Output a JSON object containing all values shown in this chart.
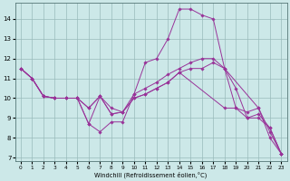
{
  "xlabel": "Windchill (Refroidissement éolien,°C)",
  "bg_color": "#cce8e8",
  "line_color": "#993399",
  "grid_color": "#99bbbb",
  "xlim": [
    -0.5,
    23.5
  ],
  "ylim": [
    6.8,
    14.8
  ],
  "yticks": [
    7,
    8,
    9,
    10,
    11,
    12,
    13,
    14
  ],
  "xticks": [
    0,
    1,
    2,
    3,
    4,
    5,
    6,
    7,
    8,
    9,
    10,
    11,
    12,
    13,
    14,
    15,
    16,
    17,
    18,
    19,
    20,
    21,
    22,
    23
  ],
  "series": [
    {
      "x": [
        0,
        1,
        2,
        3,
        4,
        5,
        6,
        7,
        8,
        9,
        10,
        11,
        12,
        13,
        14,
        15,
        16,
        17,
        18,
        21,
        22,
        23
      ],
      "y": [
        11.5,
        11.0,
        10.1,
        10.0,
        10.0,
        10.0,
        8.7,
        8.3,
        8.8,
        8.8,
        10.2,
        11.8,
        12.0,
        13.0,
        14.5,
        14.5,
        14.2,
        14.0,
        11.5,
        9.5,
        8.0,
        7.2
      ]
    },
    {
      "x": [
        0,
        1,
        2,
        3,
        4,
        5,
        6,
        7,
        8,
        9,
        10,
        11,
        12,
        13,
        14,
        15,
        16,
        17,
        18,
        19,
        20,
        21,
        22,
        23
      ],
      "y": [
        11.5,
        11.0,
        10.1,
        10.0,
        10.0,
        10.0,
        9.5,
        10.1,
        9.2,
        9.3,
        10.0,
        10.2,
        10.5,
        10.8,
        11.3,
        11.5,
        11.5,
        11.8,
        11.5,
        9.5,
        9.0,
        9.2,
        8.5,
        7.2
      ]
    },
    {
      "x": [
        0,
        1,
        2,
        3,
        4,
        5,
        6,
        7,
        8,
        9,
        10,
        11,
        12,
        13,
        14,
        15,
        16,
        17,
        18,
        19,
        20,
        21,
        22,
        23
      ],
      "y": [
        11.5,
        11.0,
        10.1,
        10.0,
        10.0,
        10.0,
        9.5,
        10.1,
        9.5,
        9.3,
        10.2,
        10.5,
        10.8,
        11.2,
        11.5,
        11.8,
        12.0,
        12.0,
        11.5,
        10.5,
        9.0,
        9.0,
        8.5,
        7.2
      ]
    },
    {
      "x": [
        0,
        1,
        2,
        3,
        5,
        6,
        7,
        8,
        9,
        10,
        11,
        12,
        13,
        14,
        18,
        19,
        20,
        21,
        22,
        23
      ],
      "y": [
        11.5,
        11.0,
        10.1,
        10.0,
        10.0,
        8.7,
        10.1,
        9.2,
        9.3,
        10.0,
        10.2,
        10.5,
        10.8,
        11.3,
        9.5,
        9.5,
        9.3,
        9.5,
        8.3,
        7.2
      ]
    }
  ]
}
